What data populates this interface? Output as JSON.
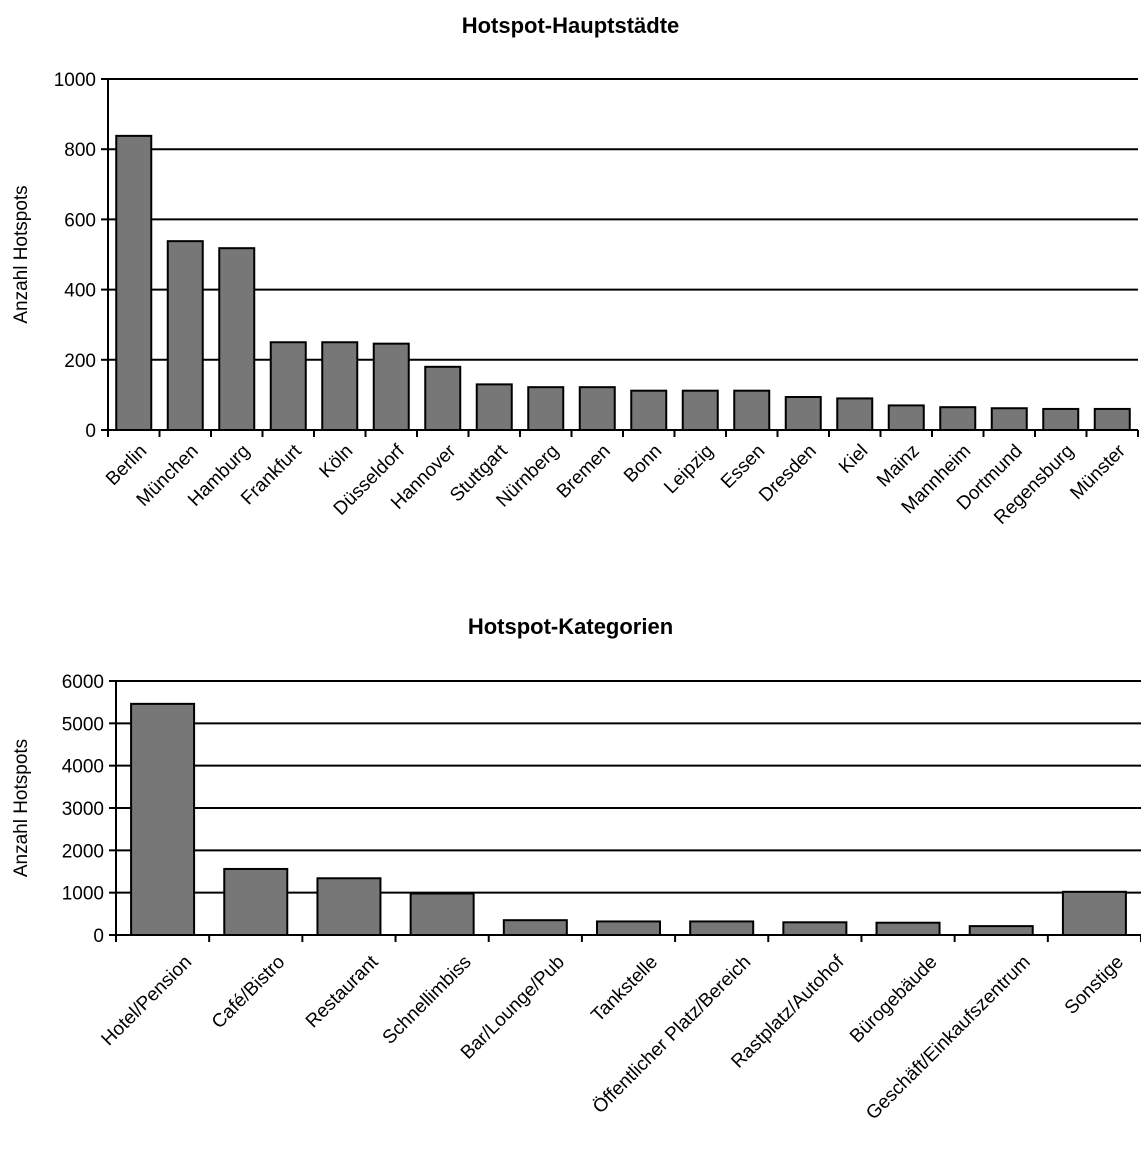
{
  "chart_data": [
    {
      "type": "bar",
      "title": "Hotspot-Hauptstädte",
      "xlabel": "",
      "ylabel": "Anzahl Hotspots",
      "ylim": [
        0,
        1000
      ],
      "yticks": [
        0,
        200,
        400,
        600,
        800,
        1000
      ],
      "grid": true,
      "bar_color": "#777777",
      "categories": [
        "Berlin",
        "München",
        "Hamburg",
        "Frankfurt",
        "Köln",
        "Düsseldorf",
        "Hannover",
        "Stuttgart",
        "Nürnberg",
        "Bremen",
        "Bonn",
        "Leipzig",
        "Essen",
        "Dresden",
        "Kiel",
        "Mainz",
        "Mannheim",
        "Dortmund",
        "Regensburg",
        "Münster"
      ],
      "values": [
        838,
        538,
        518,
        250,
        250,
        246,
        180,
        130,
        122,
        122,
        112,
        112,
        112,
        94,
        90,
        70,
        65,
        62,
        60,
        60
      ]
    },
    {
      "type": "bar",
      "title": "Hotspot-Kategorien",
      "xlabel": "",
      "ylabel": "Anzahl Hotspots",
      "ylim": [
        0,
        6000
      ],
      "yticks": [
        0,
        1000,
        2000,
        3000,
        4000,
        5000,
        6000
      ],
      "grid": true,
      "bar_color": "#777777",
      "categories": [
        "Hotel/Pension",
        "Café/Bistro",
        "Restaurant",
        "Schnellimbiss",
        "Bar/Lounge/Pub",
        "Tankstelle",
        "Öffentlicher Platz/Bereich",
        "Rastplatz/Autohof",
        "Bürogebäude",
        "Geschäft/Einkaufszentrum",
        "Sonstige"
      ],
      "values": [
        5460,
        1560,
        1340,
        980,
        350,
        320,
        320,
        300,
        290,
        210,
        1020
      ]
    }
  ]
}
